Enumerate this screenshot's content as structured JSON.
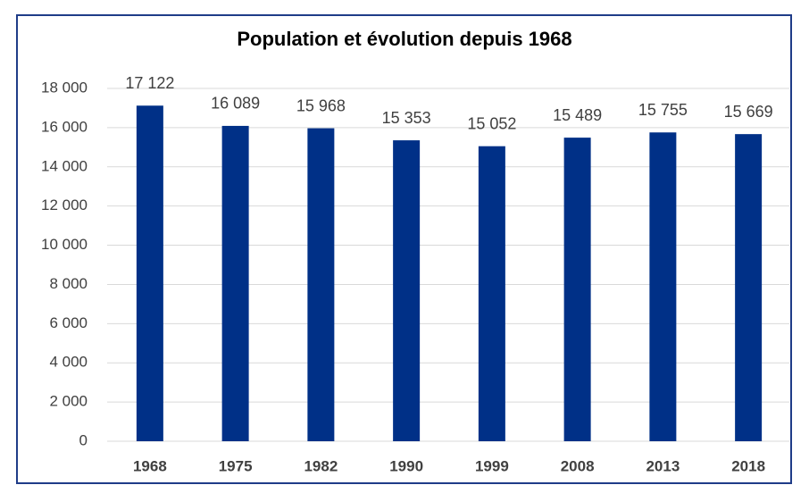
{
  "chart_data": {
    "type": "bar",
    "title": "Population et évolution depuis 1968",
    "categories": [
      "1968",
      "1975",
      "1982",
      "1990",
      "1999",
      "2008",
      "2013",
      "2018"
    ],
    "values": [
      17122,
      16089,
      15968,
      15353,
      15052,
      15489,
      15755,
      15669
    ],
    "value_labels": [
      "17 122",
      "16 089",
      "15 968",
      "15 353",
      "15 052",
      "15 489",
      "15 755",
      "15 669"
    ],
    "color": "#003087",
    "ylim": [
      0,
      18000
    ],
    "yticks": [
      0,
      {
        "value": 2000,
        "label": "2 000"
      },
      {
        "value": 4000,
        "label": "4 000"
      },
      {
        "value": 6000,
        "label": "6 000"
      },
      {
        "value": 8000,
        "label": "8 000"
      },
      {
        "value": 10000,
        "label": "10 000"
      },
      {
        "value": 12000,
        "label": "12 000"
      },
      {
        "value": 14000,
        "label": "14 000"
      },
      {
        "value": 16000,
        "label": "16 000"
      },
      {
        "value": 18000,
        "label": "18 000"
      }
    ],
    "grid": true
  }
}
